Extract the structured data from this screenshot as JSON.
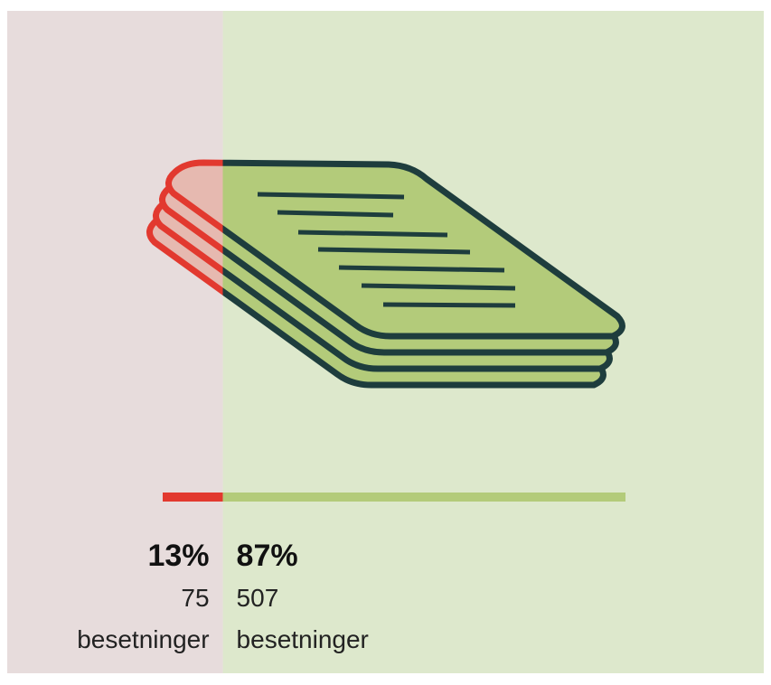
{
  "chart_data": {
    "type": "split_bar",
    "values": [
      13,
      87
    ],
    "value_labels": [
      "13%",
      "87%"
    ],
    "counts": [
      75,
      507
    ],
    "unit_labels": [
      "besetninger",
      "besetninger"
    ],
    "colors": [
      "#e2392f",
      "#b3cb7a"
    ],
    "background_colors": [
      "#e7dcdc",
      "#dde8cc"
    ],
    "icon_fills": [
      "#e6b9b0",
      "#b3cb7a"
    ],
    "icon_strokes": [
      "#e2392f",
      "#1e3d3d"
    ]
  }
}
